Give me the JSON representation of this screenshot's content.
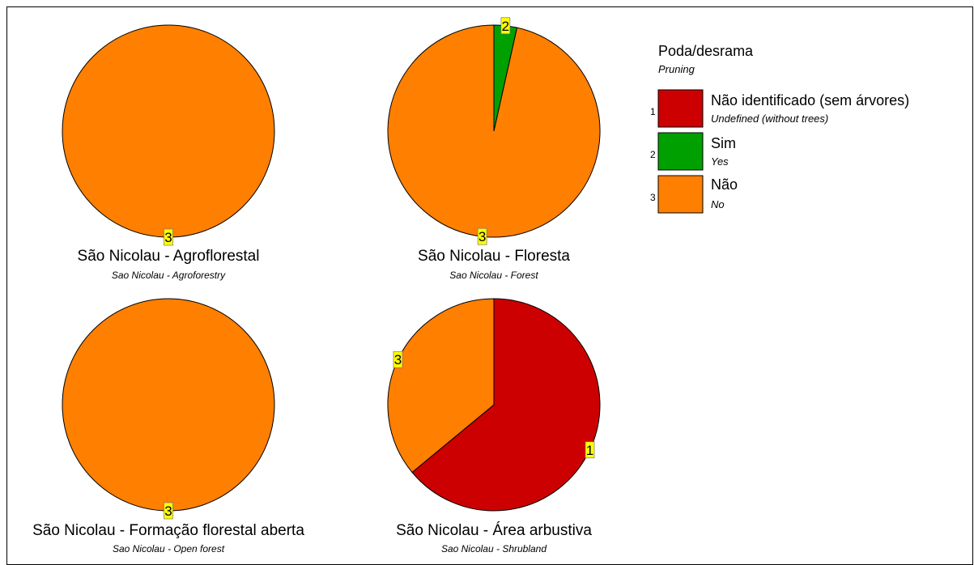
{
  "legend": {
    "title": "Poda/desrama",
    "subtitle": "Pruning",
    "items": [
      {
        "code": "1",
        "label": "Não identificado (sem árvores)",
        "sublabel": "Undefined (without trees)",
        "color": "#cc0000"
      },
      {
        "code": "2",
        "label": "Sim",
        "sublabel": "Yes",
        "color": "#00a000"
      },
      {
        "code": "3",
        "label": "Não",
        "sublabel": "No",
        "color": "#ff7f00"
      }
    ]
  },
  "chart_data": [
    {
      "type": "pie",
      "title": "São Nicolau - Agroflorestal",
      "subtitle": "Sao Nicolau - Agroforestry",
      "slices": [
        {
          "code": "3",
          "value": 100
        }
      ]
    },
    {
      "type": "pie",
      "title": "São Nicolau  - Floresta",
      "subtitle": "Sao Nicolau - Forest",
      "slices": [
        {
          "code": "2",
          "value": 3.5
        },
        {
          "code": "3",
          "value": 96.5
        }
      ]
    },
    {
      "type": "pie",
      "title": "São Nicolau - Formação florestal aberta",
      "subtitle": "Sao Nicolau - Open forest",
      "slices": [
        {
          "code": "3",
          "value": 100
        }
      ]
    },
    {
      "type": "pie",
      "title": "São Nicolau - Área arbustiva",
      "subtitle": "Sao Nicolau - Shrubland",
      "slices": [
        {
          "code": "1",
          "value": 64
        },
        {
          "code": "3",
          "value": 36
        }
      ]
    }
  ]
}
